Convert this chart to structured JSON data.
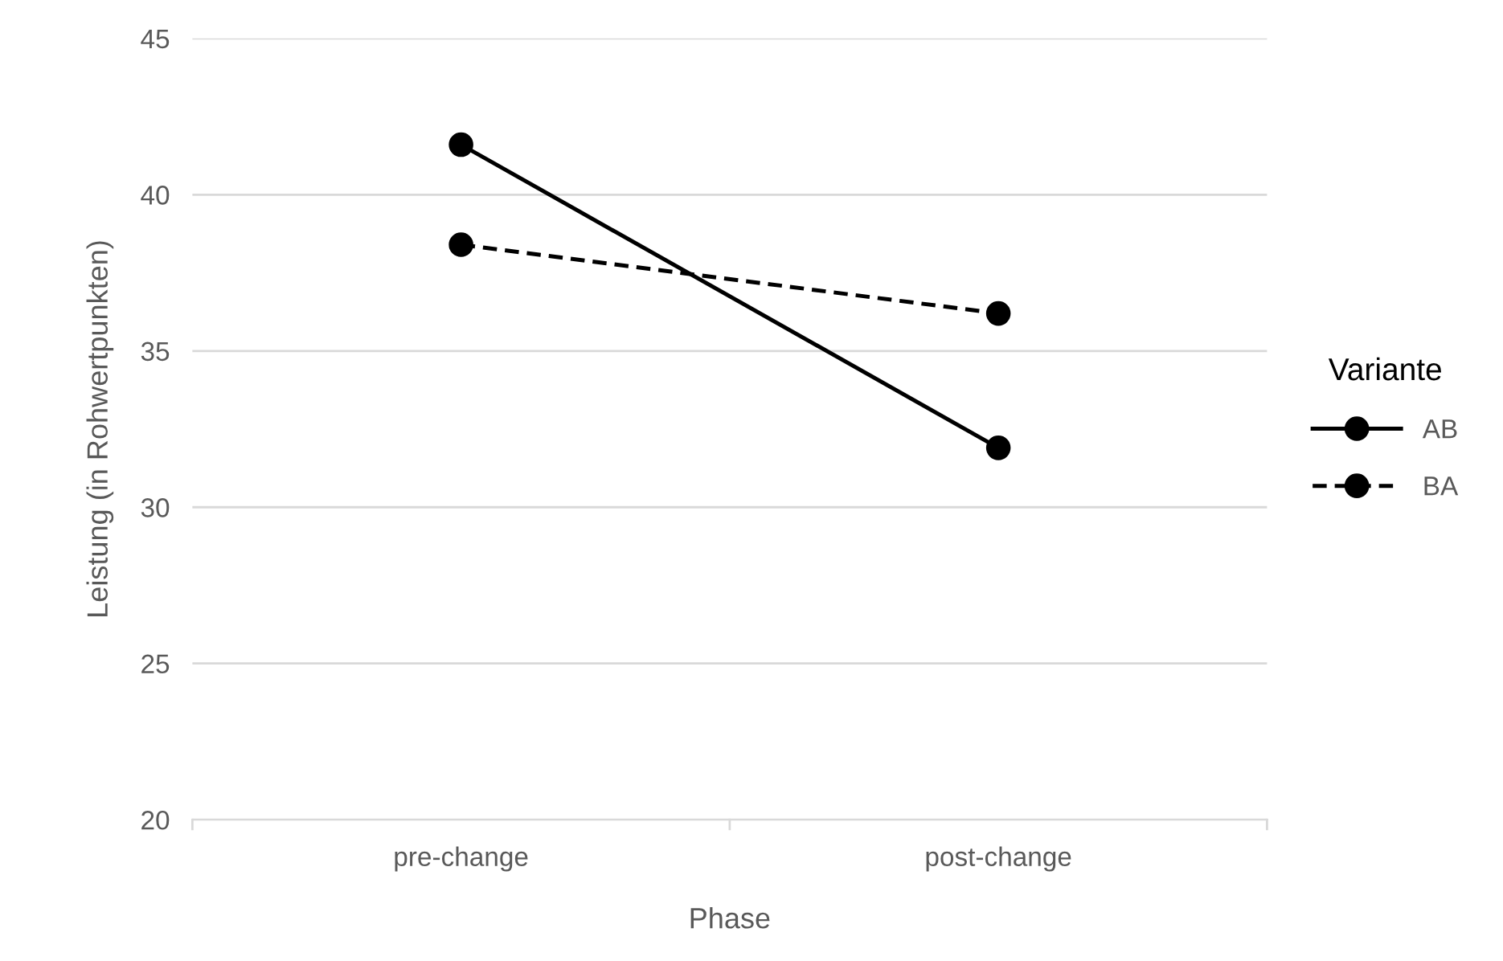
{
  "chart_data": {
    "type": "line",
    "xlabel": "Phase",
    "ylabel": "Leistung (in Rohwertpunkten)",
    "legend_title": "Variante",
    "categories": [
      "pre-change",
      "post-change"
    ],
    "series": [
      {
        "name": "AB",
        "color": "#000000",
        "values": [
          41.6,
          31.9
        ],
        "line_style": "solid"
      },
      {
        "name": "BA",
        "color": "#000000",
        "values": [
          38.4,
          36.2
        ],
        "line_style": "dashed"
      }
    ],
    "ylim": [
      20,
      45
    ],
    "yticks": [
      20,
      25,
      30,
      35,
      40,
      45
    ],
    "grid": "y",
    "legend": "right",
    "marker": "circle"
  }
}
